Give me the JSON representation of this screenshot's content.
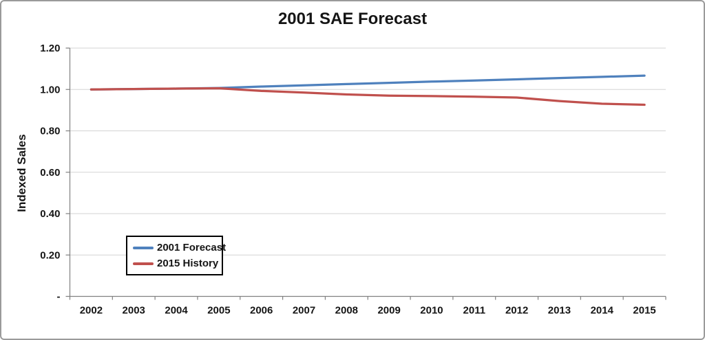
{
  "chart_data": {
    "type": "line",
    "title": "2001 SAE Forecast",
    "xlabel": "",
    "ylabel": "Indexed Sales",
    "categories": [
      "2002",
      "2003",
      "2004",
      "2005",
      "2006",
      "2007",
      "2008",
      "2009",
      "2010",
      "2011",
      "2012",
      "2013",
      "2014",
      "2015"
    ],
    "series": [
      {
        "name": "2001 Forecast",
        "color": "#4F81BD",
        "values": [
          1.0,
          1.002,
          1.004,
          1.007,
          1.014,
          1.02,
          1.026,
          1.032,
          1.038,
          1.043,
          1.049,
          1.055,
          1.061,
          1.067
        ]
      },
      {
        "name": "2015 History",
        "color": "#C0504D",
        "values": [
          1.0,
          1.002,
          1.004,
          1.006,
          0.993,
          0.985,
          0.976,
          0.97,
          0.968,
          0.965,
          0.961,
          0.944,
          0.931,
          0.926
        ]
      }
    ],
    "ylim": [
      0,
      1.2
    ],
    "ytick_step": 0.2,
    "ytick_labels": [
      "-",
      "0.20",
      "0.40",
      "0.60",
      "0.80",
      "1.00",
      "1.20"
    ],
    "grid": true,
    "grid_color": "#D3D3D3",
    "axis_color": "#808080",
    "legend_position": "inside-lower-left"
  }
}
